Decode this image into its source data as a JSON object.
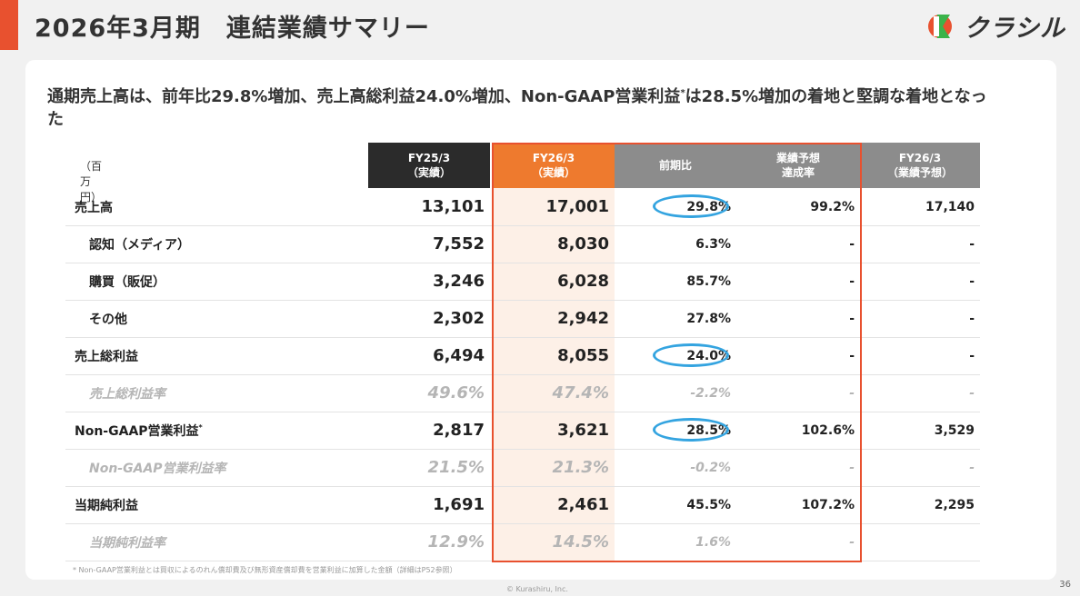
{
  "header": {
    "title": "2026年3月期　連結業績サマリー",
    "logo_text": "クラシル"
  },
  "headline": {
    "before": "通期売上高は、前年比29.8%増加、売上高総利益24.0%増加、Non-GAAP営業利益",
    "mark": "*",
    "after": "は28.5%増加の着地と堅調な着地となった"
  },
  "table": {
    "unit": "（百万円）",
    "columns": [
      {
        "line1": "FY25/3",
        "line2": "（実績）",
        "bg": "#2b2b2b"
      },
      {
        "line1": "FY26/3",
        "line2": "（実績）",
        "bg": "#ee7a2e"
      },
      {
        "line1": "前期比",
        "line2": "",
        "bg": "#8c8c8c"
      },
      {
        "line1": "業績予想",
        "line2": "達成率",
        "bg": "#8c8c8c"
      },
      {
        "line1": "FY26/3",
        "line2": "（業績予想）",
        "bg": "#8c8c8c"
      }
    ],
    "rows": [
      {
        "label": "売上高",
        "sup": "",
        "fy25": "13,101",
        "fy26": "17,001",
        "yoy": "29.8%",
        "ach": "99.2%",
        "fc": "17,140",
        "indent": false,
        "muted": false,
        "circled": true
      },
      {
        "label": "認知（メディア）",
        "sup": "",
        "fy25": "7,552",
        "fy26": "8,030",
        "yoy": "6.3%",
        "ach": "-",
        "fc": "-",
        "indent": true,
        "muted": false,
        "circled": false
      },
      {
        "label": "購買（販促）",
        "sup": "",
        "fy25": "3,246",
        "fy26": "6,028",
        "yoy": "85.7%",
        "ach": "-",
        "fc": "-",
        "indent": true,
        "muted": false,
        "circled": false
      },
      {
        "label": "その他",
        "sup": "",
        "fy25": "2,302",
        "fy26": "2,942",
        "yoy": "27.8%",
        "ach": "-",
        "fc": "-",
        "indent": true,
        "muted": false,
        "circled": false
      },
      {
        "label": "売上総利益",
        "sup": "",
        "fy25": "6,494",
        "fy26": "8,055",
        "yoy": "24.0%",
        "ach": "-",
        "fc": "-",
        "indent": false,
        "muted": false,
        "circled": true
      },
      {
        "label": "売上総利益率",
        "sup": "",
        "fy25": "49.6%",
        "fy26": "47.4%",
        "yoy": "-2.2%",
        "ach": "-",
        "fc": "-",
        "indent": true,
        "muted": true,
        "circled": false
      },
      {
        "label": "Non-GAAP営業利益",
        "sup": "*",
        "fy25": "2,817",
        "fy26": "3,621",
        "yoy": "28.5%",
        "ach": "102.6%",
        "fc": "3,529",
        "indent": false,
        "muted": false,
        "circled": true
      },
      {
        "label": "Non-GAAP営業利益率",
        "sup": "",
        "fy25": "21.5%",
        "fy26": "21.3%",
        "yoy": "-0.2%",
        "ach": "-",
        "fc": "-",
        "indent": true,
        "muted": true,
        "circled": false
      },
      {
        "label": "当期純利益",
        "sup": "",
        "fy25": "1,691",
        "fy26": "2,461",
        "yoy": "45.5%",
        "ach": "107.2%",
        "fc": "2,295",
        "indent": false,
        "muted": false,
        "circled": false
      },
      {
        "label": "当期純利益率",
        "sup": "",
        "fy25": "12.9%",
        "fy26": "14.5%",
        "yoy": "1.6%",
        "ach": "-",
        "fc": "",
        "indent": true,
        "muted": true,
        "circled": false
      }
    ]
  },
  "footnote": "* Non-GAAP営業利益とは買収によるのれん償却費及び無形資産償却費を営業利益に加算した金額（詳細はP52参照）",
  "copyright": "© Kurashiru, Inc.",
  "page_number": "36",
  "colors": {
    "accent": "#e8512f",
    "circle": "#34a4e0",
    "logo_green": "#3bb34a"
  }
}
